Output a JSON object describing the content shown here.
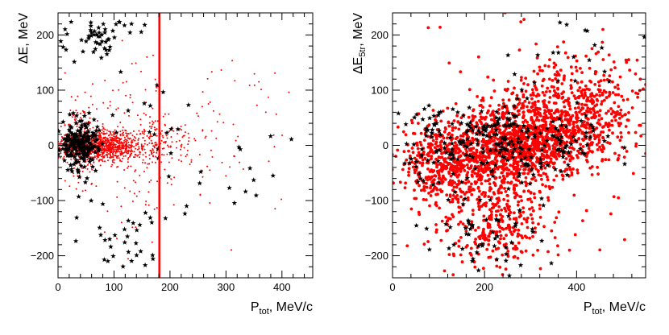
{
  "chart_data": [
    {
      "type": "scatter",
      "xlabel_main": "P",
      "xlabel_sub": "tot",
      "xlabel_rest": ", MeV/c",
      "ylabel_main": "ΔE",
      "ylabel_sub": "",
      "ylabel_rest": ", MeV",
      "xlim": [
        0,
        455
      ],
      "ylim": [
        -240,
        240
      ],
      "xticks": [
        0,
        100,
        200,
        300,
        400
      ],
      "yticks": [
        -200,
        -100,
        0,
        100,
        200
      ],
      "cut_line_x": 181,
      "colors": {
        "red": "#ff0000",
        "black": "#000000",
        "cut": "#ff0000"
      },
      "series": [
        {
          "marker": "small-dot",
          "color": "red",
          "generator": {
            "seed": 11,
            "clusters": [
              {
                "n": 900,
                "x": [
                  5,
                  140
                ],
                "y": [
                  -25,
                  25
                ]
              },
              {
                "n": 250,
                "x": [
                  5,
                  80
                ],
                "y": [
                  -70,
                  70
                ]
              },
              {
                "n": 180,
                "x": [
                  60,
                  250
                ],
                "y": [
                  -40,
                  40
                ]
              },
              {
                "n": 160,
                "x": [
                  80,
                  240
                ],
                "y": [
                  -160,
                  160
                ]
              },
              {
                "n": 50,
                "x": [
                  200,
                  455
                ],
                "y": [
                  -120,
                  160
                ]
              }
            ]
          }
        },
        {
          "marker": "star",
          "color": "black",
          "generator": {
            "seed": 23,
            "clusters": [
              {
                "n": 160,
                "x": [
                  3,
                  65
                ],
                "y": [
                  -35,
                  35
                ]
              },
              {
                "n": 50,
                "x": [
                  5,
                  80
                ],
                "y": [
                  -90,
                  80
                ]
              },
              {
                "n": 55,
                "x": [
                  5,
                  140
                ],
                "y": [
                  150,
                  240
                ]
              },
              {
                "n": 30,
                "x": [
                  60,
                  180
                ],
                "y": [
                  -240,
                  -100
                ]
              },
              {
                "n": 25,
                "x": [
                  90,
                  260
                ],
                "y": [
                  -160,
                  160
                ]
              },
              {
                "n": 12,
                "x": [
                  260,
                  455
                ],
                "y": [
                  -140,
                  20
                ]
              }
            ]
          }
        }
      ]
    },
    {
      "type": "scatter",
      "xlabel_main": "P",
      "xlabel_sub": "tot",
      "xlabel_rest": ", MeV/c",
      "ylabel_main": "ΔE",
      "ylabel_sub": "5tr",
      "ylabel_rest": ", MeV",
      "xlim": [
        0,
        550
      ],
      "ylim": [
        -240,
        240
      ],
      "xticks": [
        0,
        200,
        400
      ],
      "yticks": [
        -200,
        -100,
        0,
        100,
        200
      ],
      "colors": {
        "red": "#ff0000",
        "black": "#000000"
      },
      "series": [
        {
          "marker": "big-dot",
          "color": "red",
          "generator": {
            "seed": 37,
            "clusters": [
              {
                "n": 1400,
                "x": [
                  90,
                  470
                ],
                "y": [
                  -70,
                  80
                ],
                "tilt": 0.12
              },
              {
                "n": 350,
                "x": [
                  20,
                  200
                ],
                "y": [
                  -120,
                  40
                ]
              },
              {
                "n": 300,
                "x": [
                  120,
                  330
                ],
                "y": [
                  -230,
                  -60
                ]
              },
              {
                "n": 300,
                "x": [
                  250,
                  540
                ],
                "y": [
                  0,
                  170
                ]
              },
              {
                "n": 120,
                "x": [
                  30,
                  540
                ],
                "y": [
                  -200,
                  200
                ]
              }
            ]
          }
        },
        {
          "marker": "star",
          "color": "black",
          "generator": {
            "seed": 59,
            "clusters": [
              {
                "n": 230,
                "x": [
                  40,
                  450
                ],
                "y": [
                  -60,
                  70
                ]
              },
              {
                "n": 60,
                "x": [
                  60,
                  320
                ],
                "y": [
                  -230,
                  -80
                ]
              },
              {
                "n": 25,
                "x": [
                  15,
                  120
                ],
                "y": [
                  -100,
                  80
                ]
              },
              {
                "n": 20,
                "x": [
                  240,
                  530
                ],
                "y": [
                  60,
                  230
                ]
              }
            ]
          }
        }
      ]
    }
  ]
}
